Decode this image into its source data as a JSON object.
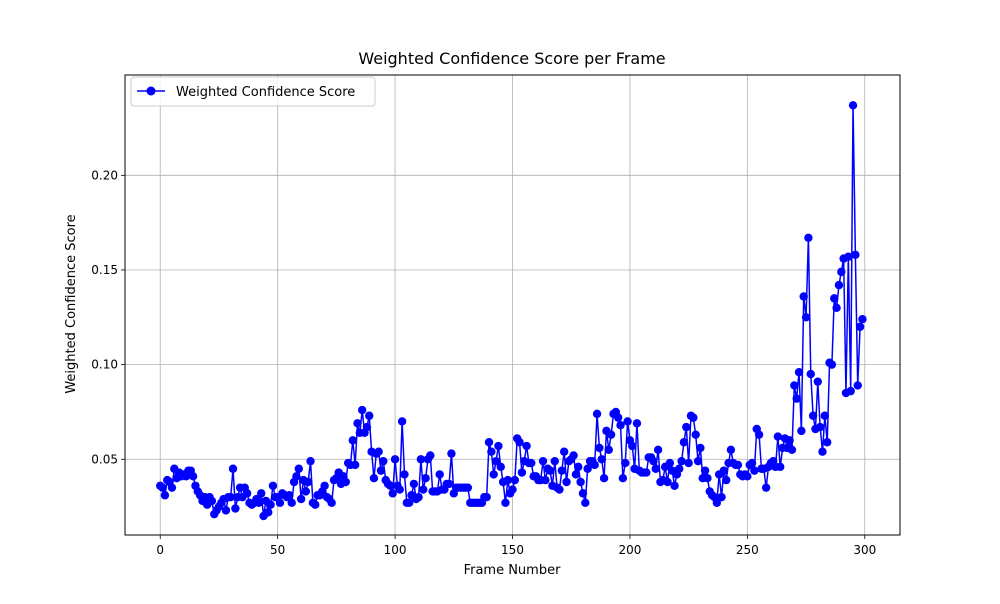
{
  "chart_data": {
    "type": "line",
    "title": "Weighted Confidence Score per Frame",
    "xlabel": "Frame Number",
    "ylabel": "Weighted Confidence Score",
    "xlim": [
      -15,
      315
    ],
    "ylim": [
      0.01,
      0.253
    ],
    "xticks": [
      0,
      50,
      100,
      150,
      200,
      250,
      300
    ],
    "yticks": [
      0.05,
      0.1,
      0.15,
      0.2
    ],
    "ytick_labels": [
      "0.05",
      "0.10",
      "0.15",
      "0.20"
    ],
    "grid": true,
    "legend_position": "top-left",
    "color": "#0000ff",
    "series": [
      {
        "name": "Weighted Confidence Score",
        "values": [
          0.036,
          0.035,
          0.031,
          0.039,
          0.038,
          0.035,
          0.045,
          0.04,
          0.043,
          0.041,
          0.042,
          0.041,
          0.044,
          0.044,
          0.041,
          0.036,
          0.033,
          0.031,
          0.028,
          0.03,
          0.026,
          0.03,
          0.028,
          0.021,
          0.023,
          0.025,
          0.027,
          0.029,
          0.023,
          0.03,
          0.03,
          0.045,
          0.024,
          0.03,
          0.035,
          0.03,
          0.035,
          0.032,
          0.027,
          0.026,
          0.027,
          0.029,
          0.027,
          0.032,
          0.02,
          0.028,
          0.022,
          0.026,
          0.036,
          0.03,
          0.03,
          0.027,
          0.032,
          0.031,
          0.03,
          0.031,
          0.027,
          0.038,
          0.041,
          0.045,
          0.029,
          0.039,
          0.033,
          0.038,
          0.049,
          0.027,
          0.026,
          0.031,
          0.031,
          0.033,
          0.036,
          0.03,
          0.029,
          0.027,
          0.039,
          0.04,
          0.043,
          0.037,
          0.041,
          0.038,
          0.048,
          0.047,
          0.06,
          0.047,
          0.069,
          0.064,
          0.076,
          0.064,
          0.067,
          0.073,
          0.054,
          0.04,
          0.053,
          0.054,
          0.044,
          0.049,
          0.039,
          0.037,
          0.036,
          0.032,
          0.05,
          0.036,
          0.034,
          0.07,
          0.042,
          0.027,
          0.027,
          0.031,
          0.037,
          0.029,
          0.03,
          0.05,
          0.034,
          0.04,
          0.05,
          0.052,
          0.033,
          0.033,
          0.033,
          0.042,
          0.034,
          0.034,
          0.037,
          0.037,
          0.053,
          0.032,
          0.035,
          0.035,
          0.035,
          0.035,
          0.035,
          0.035,
          0.027,
          0.027,
          0.027,
          0.027,
          0.027,
          0.027,
          0.03,
          0.03,
          0.059,
          0.054,
          0.042,
          0.049,
          0.057,
          0.046,
          0.038,
          0.027,
          0.039,
          0.032,
          0.034,
          0.039,
          0.061,
          0.059,
          0.043,
          0.049,
          0.057,
          0.048,
          0.048,
          0.041,
          0.041,
          0.039,
          0.039,
          0.049,
          0.039,
          0.045,
          0.044,
          0.036,
          0.049,
          0.035,
          0.034,
          0.044,
          0.054,
          0.038,
          0.049,
          0.05,
          0.052,
          0.042,
          0.046,
          0.038,
          0.032,
          0.027,
          0.045,
          0.049,
          0.049,
          0.047,
          0.074,
          0.056,
          0.05,
          0.04,
          0.065,
          0.055,
          0.063,
          0.074,
          0.075,
          0.072,
          0.068,
          0.04,
          0.048,
          0.07,
          0.06,
          0.057,
          0.045,
          0.069,
          0.044,
          0.043,
          0.043,
          0.043,
          0.051,
          0.051,
          0.049,
          0.045,
          0.055,
          0.038,
          0.039,
          0.046,
          0.038,
          0.048,
          0.044,
          0.036,
          0.042,
          0.045,
          0.049,
          0.059,
          0.067,
          0.048,
          0.073,
          0.072,
          0.063,
          0.049,
          0.056,
          0.04,
          0.044,
          0.04,
          0.033,
          0.031,
          0.03,
          0.027,
          0.042,
          0.03,
          0.044,
          0.039,
          0.048,
          0.055,
          0.048,
          0.047,
          0.047,
          0.042,
          0.041,
          0.042,
          0.041,
          0.047,
          0.048,
          0.044,
          0.066,
          0.063,
          0.045,
          0.045,
          0.035,
          0.046,
          0.048,
          0.049,
          0.046,
          0.062,
          0.046,
          0.056,
          0.061,
          0.056,
          0.06,
          0.055,
          0.089,
          0.082,
          0.096,
          0.065,
          0.136,
          0.125,
          0.167,
          0.095,
          0.073,
          0.066,
          0.091,
          0.067,
          0.054,
          0.073,
          0.059,
          0.101,
          0.1,
          0.135,
          0.13,
          0.142,
          0.149,
          0.156,
          0.085,
          0.157,
          0.086,
          0.237,
          0.158,
          0.089,
          0.12,
          0.124
        ]
      }
    ]
  }
}
